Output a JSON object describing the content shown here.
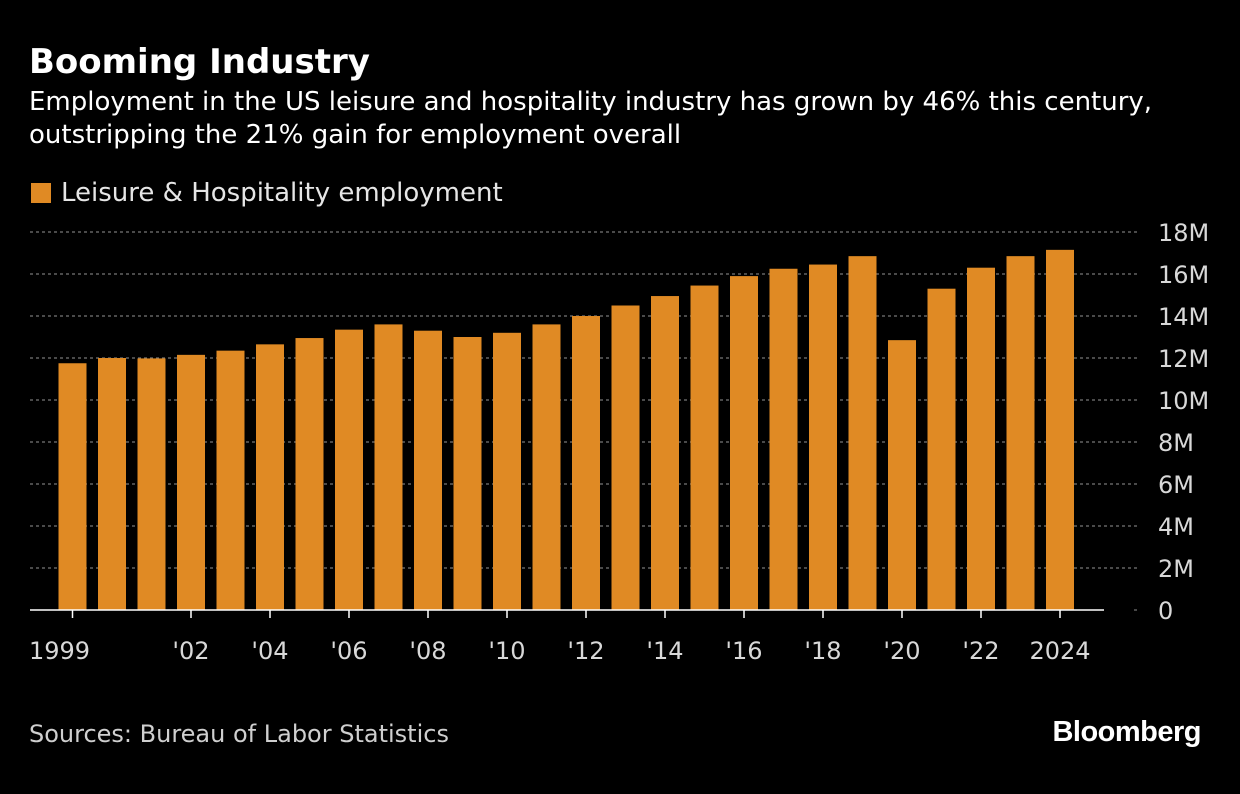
{
  "chart_data": {
    "type": "bar",
    "title": "Booming Industry",
    "subtitle": "Employment in the US leisure and hospitality industry has grown by 46% this century, outstripping the 21% gain for employment overall",
    "series": [
      {
        "name": "Leisure & Hospitality employment",
        "color": "#e08a24",
        "values": [
          11.75,
          12.0,
          11.98,
          12.15,
          12.35,
          12.65,
          12.95,
          13.35,
          13.6,
          13.3,
          13.0,
          13.2,
          13.6,
          14.0,
          14.5,
          14.95,
          15.45,
          15.9,
          16.25,
          16.45,
          16.85,
          12.85,
          15.3,
          16.3,
          16.85,
          17.15
        ]
      }
    ],
    "x": [
      1999,
      2000,
      2001,
      2002,
      2003,
      2004,
      2005,
      2006,
      2007,
      2008,
      2009,
      2010,
      2011,
      2012,
      2013,
      2014,
      2015,
      2016,
      2017,
      2018,
      2019,
      2020,
      2021,
      2022,
      2023,
      2024
    ],
    "xticks": [
      {
        "year": 1999,
        "label": "1999"
      },
      {
        "year": 2002,
        "label": "'02"
      },
      {
        "year": 2004,
        "label": "'04"
      },
      {
        "year": 2006,
        "label": "'06"
      },
      {
        "year": 2008,
        "label": "'08"
      },
      {
        "year": 2010,
        "label": "'10"
      },
      {
        "year": 2012,
        "label": "'12"
      },
      {
        "year": 2014,
        "label": "'14"
      },
      {
        "year": 2016,
        "label": "'16"
      },
      {
        "year": 2018,
        "label": "'18"
      },
      {
        "year": 2020,
        "label": "'20"
      },
      {
        "year": 2022,
        "label": "'22"
      },
      {
        "year": 2024,
        "label": "2024"
      }
    ],
    "yticks": [
      {
        "value": 0,
        "label": "0"
      },
      {
        "value": 2,
        "label": "2M"
      },
      {
        "value": 4,
        "label": "4M"
      },
      {
        "value": 6,
        "label": "6M"
      },
      {
        "value": 8,
        "label": "8M"
      },
      {
        "value": 10,
        "label": "10M"
      },
      {
        "value": 12,
        "label": "12M"
      },
      {
        "value": 14,
        "label": "14M"
      },
      {
        "value": 16,
        "label": "16M"
      },
      {
        "value": 18,
        "label": "18M"
      }
    ],
    "ylim": [
      0,
      18
    ],
    "yunit": "millions of jobs",
    "xlabel": "",
    "ylabel": "",
    "legend_position": "top-left",
    "grid": true
  },
  "legend": {
    "label": "Leisure & Hospitality employment"
  },
  "footer": {
    "source": "Sources: Bureau of Labor Statistics",
    "brand": "Bloomberg"
  },
  "colors": {
    "background": "#000000",
    "bar": "#e08a24",
    "text": "#ffffff",
    "muted_text": "#cfcfcf",
    "grid": "#777777"
  }
}
